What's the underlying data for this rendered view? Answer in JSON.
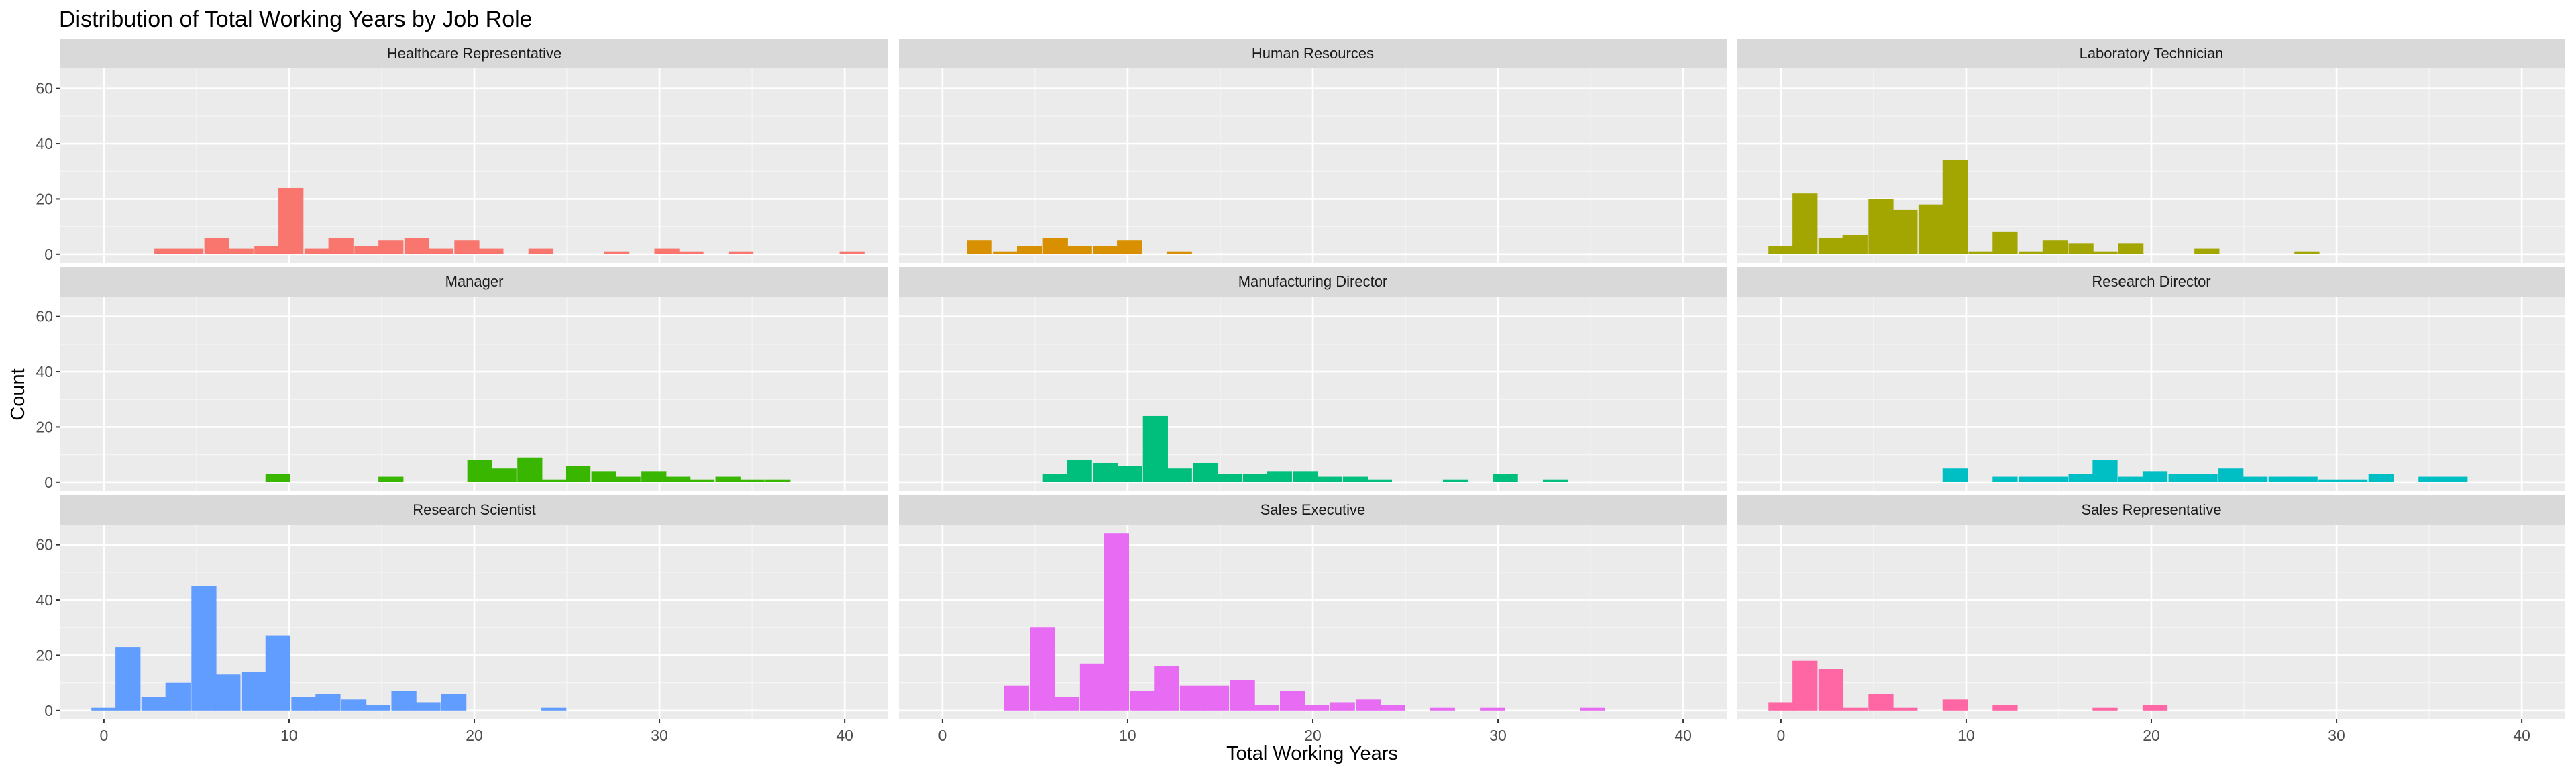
{
  "chart_data": {
    "type": "bar",
    "subtype": "faceted-histogram",
    "title": "Distribution of Total Working Years by Job Role",
    "xlabel": "Total Working Years",
    "ylabel": "Count",
    "xlim": [
      -2.35,
      42.35
    ],
    "ylim": [
      -3.2,
      67.2
    ],
    "xticks": [
      0,
      10,
      20,
      30,
      40
    ],
    "yticks": [
      0,
      20,
      40,
      60
    ],
    "bin_width": 1.35,
    "grid": true,
    "legend": "none",
    "facets": [
      {
        "name": "Healthcare Representative",
        "color": "#F8766D",
        "bars": [
          [
            3.4,
            2
          ],
          [
            4.7,
            2
          ],
          [
            6.1,
            6
          ],
          [
            7.4,
            2
          ],
          [
            8.8,
            3
          ],
          [
            10.1,
            24
          ],
          [
            11.5,
            2
          ],
          [
            12.8,
            6
          ],
          [
            14.2,
            3
          ],
          [
            15.5,
            5
          ],
          [
            16.9,
            6
          ],
          [
            18.2,
            2
          ],
          [
            19.6,
            5
          ],
          [
            20.9,
            2
          ],
          [
            23.6,
            2
          ],
          [
            27.7,
            1
          ],
          [
            30.4,
            2
          ],
          [
            31.7,
            1
          ],
          [
            34.4,
            1
          ],
          [
            40.4,
            1
          ]
        ]
      },
      {
        "name": "Human Resources",
        "color": "#D89000",
        "bars": [
          [
            2.0,
            5
          ],
          [
            3.4,
            1
          ],
          [
            4.7,
            3
          ],
          [
            6.1,
            6
          ],
          [
            7.4,
            3
          ],
          [
            8.8,
            3
          ],
          [
            10.1,
            5
          ],
          [
            12.8,
            1
          ]
        ]
      },
      {
        "name": "Laboratory Technician",
        "color": "#A3A500",
        "bars": [
          [
            0.0,
            3
          ],
          [
            1.3,
            22
          ],
          [
            2.7,
            6
          ],
          [
            4.0,
            7
          ],
          [
            5.4,
            20
          ],
          [
            6.7,
            16
          ],
          [
            8.1,
            18
          ],
          [
            9.4,
            34
          ],
          [
            10.8,
            1
          ],
          [
            12.1,
            8
          ],
          [
            13.5,
            1
          ],
          [
            14.8,
            5
          ],
          [
            16.2,
            4
          ],
          [
            17.5,
            1
          ],
          [
            18.9,
            4
          ],
          [
            23.0,
            2
          ],
          [
            28.4,
            1
          ]
        ]
      },
      {
        "name": "Manager",
        "color": "#39B600",
        "bars": [
          [
            9.4,
            3
          ],
          [
            15.5,
            2
          ],
          [
            20.3,
            8
          ],
          [
            21.6,
            5
          ],
          [
            23.0,
            9
          ],
          [
            24.3,
            1
          ],
          [
            25.6,
            6
          ],
          [
            27.0,
            4
          ],
          [
            28.3,
            2
          ],
          [
            29.7,
            4
          ],
          [
            31.0,
            2
          ],
          [
            32.3,
            1
          ],
          [
            33.7,
            2
          ],
          [
            35.0,
            1
          ],
          [
            36.4,
            1
          ]
        ]
      },
      {
        "name": "Manufacturing Director",
        "color": "#00BF7D",
        "bars": [
          [
            6.1,
            3
          ],
          [
            7.4,
            8
          ],
          [
            8.8,
            7
          ],
          [
            10.1,
            6
          ],
          [
            11.5,
            24
          ],
          [
            12.8,
            5
          ],
          [
            14.2,
            7
          ],
          [
            15.5,
            3
          ],
          [
            16.9,
            3
          ],
          [
            18.2,
            4
          ],
          [
            19.6,
            4
          ],
          [
            20.9,
            2
          ],
          [
            22.3,
            2
          ],
          [
            23.6,
            1
          ],
          [
            27.7,
            1
          ],
          [
            30.4,
            3
          ],
          [
            33.1,
            1
          ]
        ]
      },
      {
        "name": "Research Director",
        "color": "#00BFC4",
        "bars": [
          [
            9.4,
            5
          ],
          [
            12.1,
            2
          ],
          [
            13.5,
            2
          ],
          [
            14.8,
            2
          ],
          [
            16.2,
            3
          ],
          [
            17.5,
            8
          ],
          [
            18.9,
            2
          ],
          [
            20.2,
            4
          ],
          [
            21.6,
            3
          ],
          [
            22.9,
            3
          ],
          [
            24.3,
            5
          ],
          [
            25.6,
            2
          ],
          [
            27.0,
            2
          ],
          [
            28.3,
            2
          ],
          [
            29.7,
            1
          ],
          [
            31.0,
            1
          ],
          [
            32.4,
            3
          ],
          [
            35.1,
            2
          ],
          [
            36.4,
            2
          ]
        ]
      },
      {
        "name": "Research Scientist",
        "color": "#619CFF",
        "bars": [
          [
            0.0,
            1
          ],
          [
            1.3,
            23
          ],
          [
            2.7,
            5
          ],
          [
            4.0,
            10
          ],
          [
            5.4,
            45
          ],
          [
            6.7,
            13
          ],
          [
            8.1,
            14
          ],
          [
            9.4,
            27
          ],
          [
            10.8,
            5
          ],
          [
            12.1,
            6
          ],
          [
            13.5,
            4
          ],
          [
            14.8,
            2
          ],
          [
            16.2,
            7
          ],
          [
            17.5,
            3
          ],
          [
            18.9,
            6
          ],
          [
            24.3,
            1
          ]
        ]
      },
      {
        "name": "Sales Executive",
        "color": "#E76BF3",
        "bars": [
          [
            4.0,
            9
          ],
          [
            5.4,
            30
          ],
          [
            6.7,
            5
          ],
          [
            8.1,
            17
          ],
          [
            9.4,
            64
          ],
          [
            10.8,
            7
          ],
          [
            12.1,
            16
          ],
          [
            13.5,
            9
          ],
          [
            14.8,
            9
          ],
          [
            16.2,
            11
          ],
          [
            17.5,
            2
          ],
          [
            18.9,
            7
          ],
          [
            20.2,
            2
          ],
          [
            21.6,
            3
          ],
          [
            23.0,
            4
          ],
          [
            24.3,
            2
          ],
          [
            27.0,
            1
          ],
          [
            29.7,
            1
          ],
          [
            35.1,
            1
          ]
        ]
      },
      {
        "name": "Sales Representative",
        "color": "#FF67A4",
        "bars": [
          [
            0.0,
            3
          ],
          [
            1.3,
            18
          ],
          [
            2.7,
            15
          ],
          [
            4.0,
            1
          ],
          [
            5.4,
            6
          ],
          [
            6.7,
            1
          ],
          [
            9.4,
            4
          ],
          [
            12.1,
            2
          ],
          [
            17.5,
            1
          ],
          [
            20.2,
            2
          ]
        ]
      }
    ]
  }
}
